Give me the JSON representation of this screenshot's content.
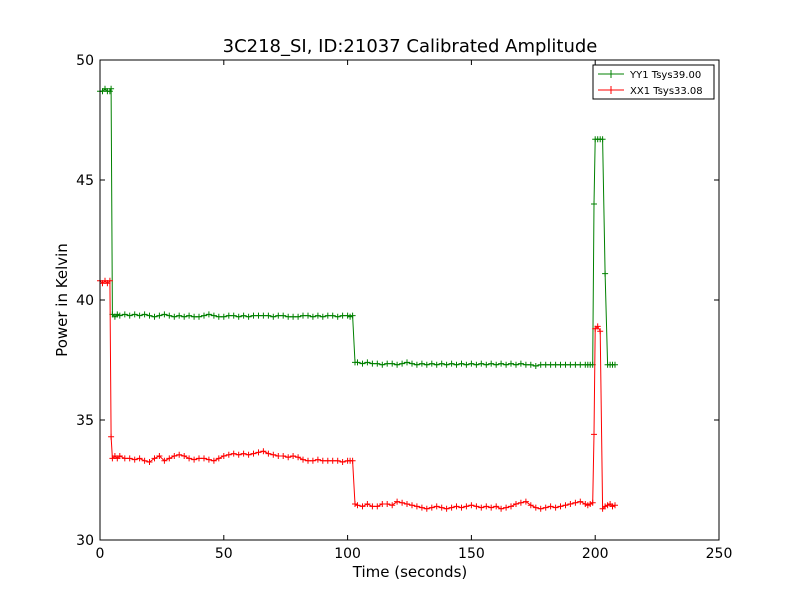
{
  "chart_data": {
    "type": "line",
    "title": "3C218_SI, ID:21037 Calibrated Amplitude",
    "xlabel": "Time (seconds)",
    "ylabel": "Power in Kelvin",
    "xlim": [
      0,
      250
    ],
    "ylim": [
      30,
      50
    ],
    "xticks": [
      0,
      50,
      100,
      150,
      200,
      250
    ],
    "yticks": [
      30,
      35,
      40,
      45,
      50
    ],
    "xtick_labels": [
      "0",
      "50",
      "100",
      "150",
      "200",
      "250"
    ],
    "ytick_labels": [
      "30",
      "35",
      "40",
      "45",
      "50"
    ],
    "grid": false,
    "legend_position": "top-right",
    "marker": "+",
    "series": [
      {
        "name": "YY1 Tsys39.00",
        "color": "#008000",
        "x": [
          0,
          1,
          2,
          3,
          4,
          4.5,
          5,
          6,
          7,
          8,
          10,
          12,
          14,
          16,
          18,
          20,
          22,
          24,
          26,
          28,
          30,
          32,
          34,
          36,
          38,
          40,
          42,
          44,
          46,
          48,
          50,
          52,
          54,
          56,
          58,
          60,
          62,
          64,
          66,
          68,
          70,
          72,
          74,
          76,
          78,
          80,
          82,
          84,
          86,
          88,
          90,
          92,
          94,
          96,
          98,
          100,
          101,
          102,
          103,
          104,
          106,
          108,
          110,
          112,
          114,
          116,
          118,
          120,
          122,
          124,
          126,
          128,
          130,
          132,
          134,
          136,
          138,
          140,
          142,
          144,
          146,
          148,
          150,
          152,
          154,
          156,
          158,
          160,
          162,
          164,
          166,
          168,
          170,
          172,
          174,
          176,
          178,
          180,
          182,
          184,
          186,
          188,
          190,
          192,
          194,
          196,
          197,
          198,
          199,
          199.5,
          200,
          201,
          202,
          203,
          204,
          205,
          206,
          207,
          208
        ],
        "y": [
          48.7,
          48.7,
          48.8,
          48.7,
          48.7,
          48.8,
          39.4,
          39.3,
          39.4,
          39.35,
          39.4,
          39.35,
          39.4,
          39.35,
          39.4,
          39.35,
          39.3,
          39.35,
          39.4,
          39.35,
          39.3,
          39.35,
          39.3,
          39.35,
          39.3,
          39.3,
          39.35,
          39.4,
          39.35,
          39.3,
          39.3,
          39.35,
          39.35,
          39.3,
          39.35,
          39.3,
          39.35,
          39.35,
          39.35,
          39.35,
          39.3,
          39.35,
          39.35,
          39.3,
          39.3,
          39.3,
          39.35,
          39.35,
          39.3,
          39.35,
          39.3,
          39.35,
          39.35,
          39.3,
          39.35,
          39.35,
          39.3,
          39.35,
          37.4,
          37.4,
          37.35,
          37.4,
          37.35,
          37.35,
          37.3,
          37.35,
          37.35,
          37.3,
          37.35,
          37.4,
          37.35,
          37.3,
          37.35,
          37.3,
          37.35,
          37.3,
          37.35,
          37.3,
          37.35,
          37.3,
          37.35,
          37.3,
          37.35,
          37.3,
          37.35,
          37.3,
          37.35,
          37.3,
          37.35,
          37.3,
          37.35,
          37.3,
          37.35,
          37.3,
          37.3,
          37.25,
          37.3,
          37.3,
          37.3,
          37.3,
          37.3,
          37.3,
          37.3,
          37.3,
          37.3,
          37.3,
          37.3,
          37.3,
          37.3,
          44.0,
          46.7,
          46.7,
          46.7,
          46.7,
          41.1,
          37.3,
          37.3,
          37.3,
          37.3
        ],
        "note_shape": "line with plus markers"
      },
      {
        "name": "XX1 Tsys33.08",
        "color": "#ff0000",
        "x": [
          0,
          1,
          2,
          3,
          4,
          4.5,
          5,
          6,
          7,
          8,
          10,
          12,
          14,
          16,
          18,
          20,
          22,
          24,
          26,
          28,
          30,
          32,
          34,
          36,
          38,
          40,
          42,
          44,
          46,
          48,
          50,
          52,
          54,
          56,
          58,
          60,
          62,
          64,
          66,
          68,
          70,
          72,
          74,
          76,
          78,
          80,
          82,
          84,
          86,
          88,
          90,
          92,
          94,
          96,
          98,
          100,
          101,
          102,
          103,
          104,
          106,
          108,
          110,
          112,
          114,
          116,
          118,
          120,
          122,
          124,
          126,
          128,
          130,
          132,
          134,
          136,
          138,
          140,
          142,
          144,
          146,
          148,
          150,
          152,
          154,
          156,
          158,
          160,
          162,
          164,
          166,
          168,
          170,
          172,
          174,
          176,
          178,
          180,
          182,
          184,
          186,
          188,
          190,
          192,
          194,
          196,
          197,
          198,
          199,
          199.5,
          200,
          201,
          202,
          203,
          204,
          205,
          206,
          207,
          208
        ],
        "y": [
          40.8,
          40.7,
          40.8,
          40.7,
          40.8,
          34.3,
          33.4,
          33.5,
          33.4,
          33.5,
          33.4,
          33.4,
          33.35,
          33.4,
          33.3,
          33.25,
          33.4,
          33.5,
          33.3,
          33.4,
          33.5,
          33.55,
          33.5,
          33.4,
          33.35,
          33.4,
          33.4,
          33.35,
          33.3,
          33.4,
          33.5,
          33.55,
          33.6,
          33.55,
          33.6,
          33.55,
          33.6,
          33.65,
          33.7,
          33.6,
          33.55,
          33.5,
          33.5,
          33.45,
          33.5,
          33.45,
          33.35,
          33.3,
          33.3,
          33.35,
          33.3,
          33.3,
          33.3,
          33.3,
          33.25,
          33.3,
          33.3,
          33.3,
          31.5,
          31.45,
          31.4,
          31.5,
          31.4,
          31.4,
          31.5,
          31.5,
          31.45,
          31.6,
          31.55,
          31.5,
          31.45,
          31.4,
          31.35,
          31.3,
          31.35,
          31.4,
          31.35,
          31.3,
          31.35,
          31.4,
          31.35,
          31.4,
          31.45,
          31.4,
          31.35,
          31.4,
          31.35,
          31.4,
          31.3,
          31.35,
          31.4,
          31.5,
          31.55,
          31.6,
          31.45,
          31.35,
          31.3,
          31.35,
          31.4,
          31.35,
          31.4,
          31.45,
          31.5,
          31.55,
          31.6,
          31.5,
          31.45,
          31.5,
          31.55,
          34.4,
          38.8,
          38.9,
          38.7,
          31.3,
          31.4,
          31.45,
          31.5,
          31.4,
          31.45
        ],
        "note_shape": "line with plus markers"
      }
    ]
  }
}
